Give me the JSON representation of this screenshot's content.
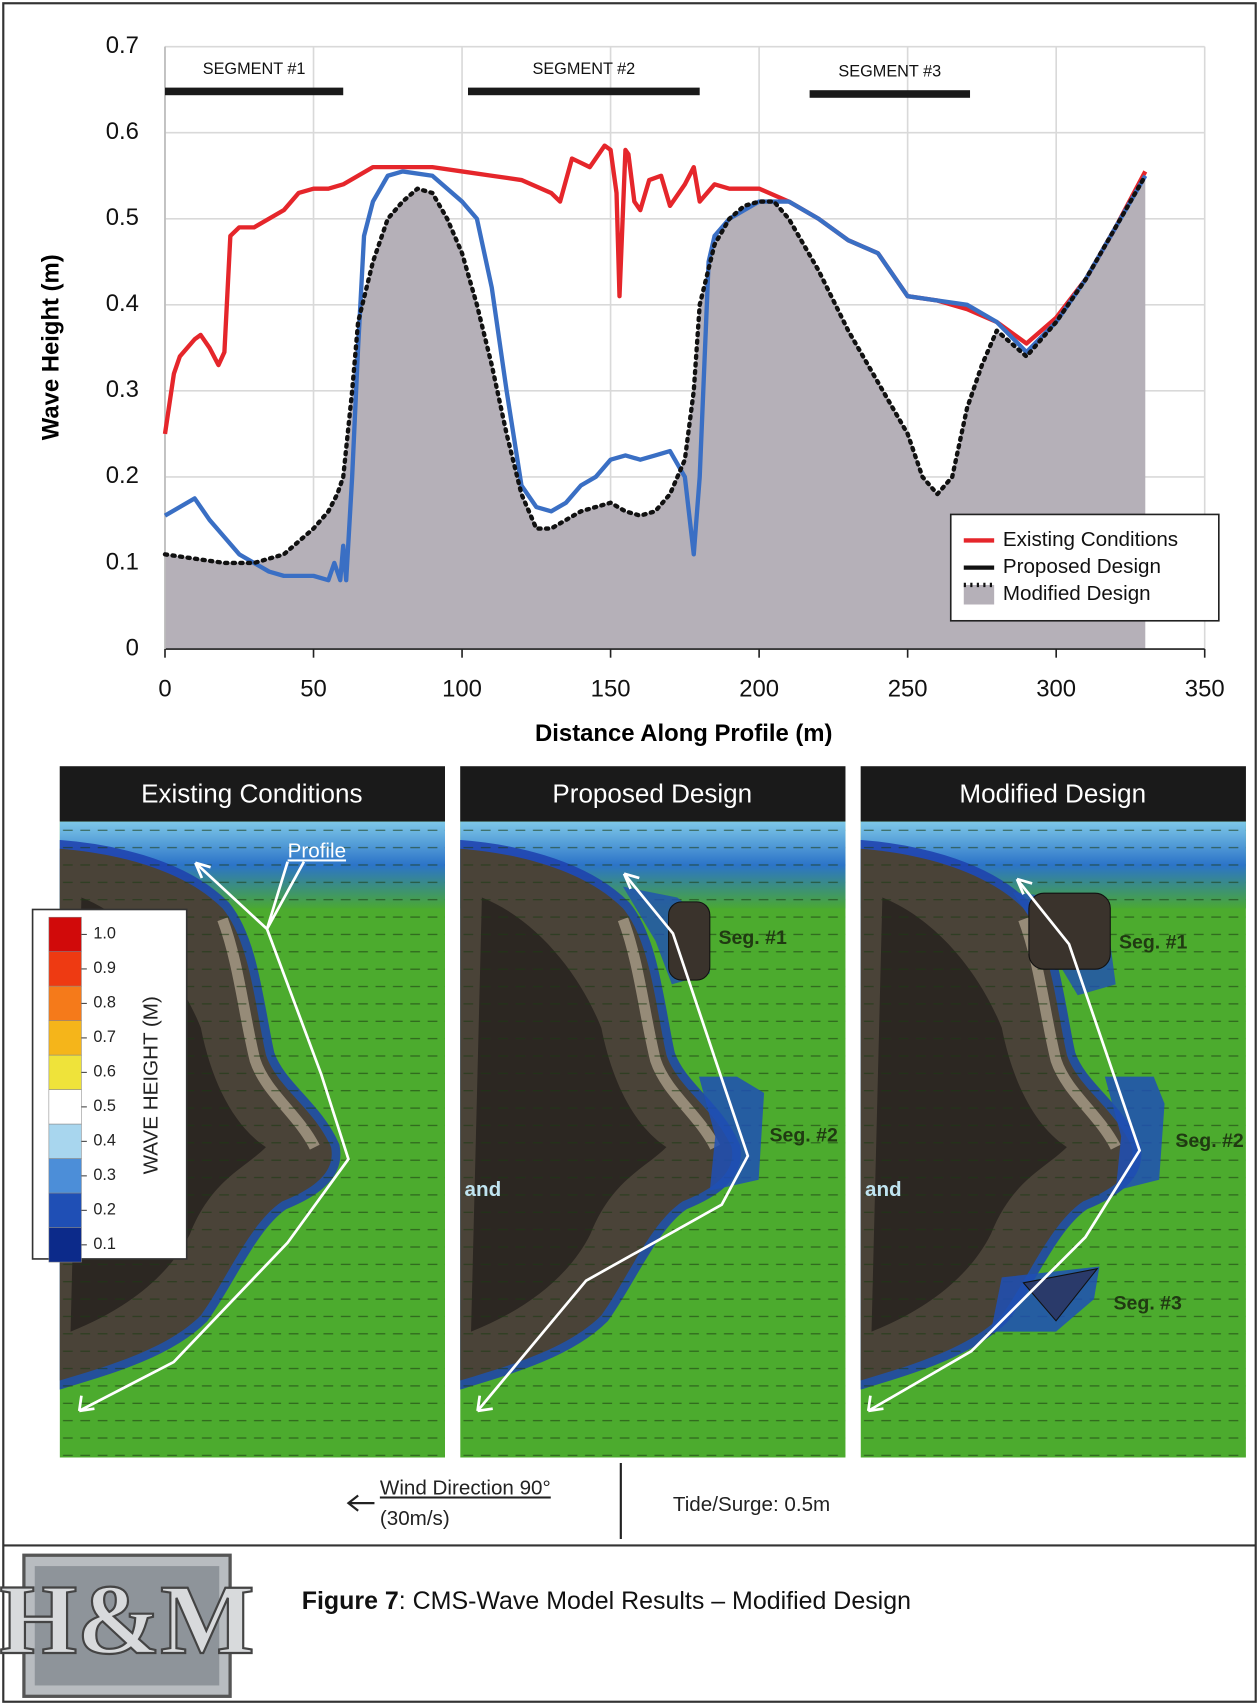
{
  "chart_data": {
    "type": "line",
    "xlabel": "Distance Along Profile (m)",
    "ylabel": "Wave Height (m)",
    "xlim": [
      0,
      350
    ],
    "ylim": [
      0,
      0.7
    ],
    "xticks": [
      0,
      50,
      100,
      150,
      200,
      250,
      300,
      350
    ],
    "yticks": [
      0,
      0.1,
      0.2,
      0.3,
      0.4,
      0.5,
      0.6,
      0.7
    ],
    "grid": true,
    "legend": "lower right",
    "annotations": [
      {
        "label": "SEGMENT #1",
        "x": [
          0,
          60
        ],
        "y": 0.648
      },
      {
        "label": "SEGMENT #2",
        "x": [
          102,
          180
        ],
        "y": 0.648
      },
      {
        "label": "SEGMENT #3",
        "x": [
          217,
          271
        ],
        "y": 0.645
      }
    ],
    "series": [
      {
        "name": "Existing Conditions",
        "color": "#e5262b",
        "style": "solid",
        "x": [
          0,
          3,
          5,
          10,
          12,
          15,
          18,
          20,
          22,
          25,
          30,
          35,
          40,
          45,
          50,
          55,
          60,
          65,
          70,
          80,
          90,
          100,
          110,
          120,
          130,
          133,
          137,
          140,
          143,
          148,
          150,
          152,
          153,
          155,
          156,
          158,
          160,
          163,
          167,
          170,
          175,
          178,
          180,
          185,
          190,
          200,
          210,
          220,
          230,
          240,
          250,
          260,
          270,
          280,
          290,
          300,
          310,
          320,
          330
        ],
        "values": [
          0.25,
          0.32,
          0.34,
          0.36,
          0.365,
          0.35,
          0.33,
          0.345,
          0.48,
          0.49,
          0.49,
          0.5,
          0.51,
          0.53,
          0.535,
          0.535,
          0.54,
          0.55,
          0.56,
          0.56,
          0.56,
          0.555,
          0.55,
          0.545,
          0.53,
          0.52,
          0.57,
          0.565,
          0.56,
          0.585,
          0.58,
          0.53,
          0.41,
          0.58,
          0.575,
          0.52,
          0.51,
          0.545,
          0.55,
          0.515,
          0.54,
          0.56,
          0.52,
          0.54,
          0.535,
          0.535,
          0.52,
          0.5,
          0.475,
          0.46,
          0.41,
          0.405,
          0.395,
          0.38,
          0.355,
          0.385,
          0.43,
          0.49,
          0.555
        ]
      },
      {
        "name": "Proposed Design",
        "color": "#3a6fc4",
        "legend_color": "#111111",
        "style": "solid",
        "x": [
          0,
          5,
          10,
          15,
          20,
          25,
          30,
          35,
          40,
          50,
          55,
          57,
          59,
          60,
          61,
          63,
          65,
          67,
          70,
          75,
          80,
          90,
          100,
          105,
          110,
          115,
          120,
          125,
          130,
          135,
          140,
          145,
          150,
          155,
          160,
          165,
          170,
          175,
          178,
          180,
          183,
          185,
          190,
          200,
          210,
          220,
          230,
          240,
          250,
          260,
          270,
          280,
          290,
          300,
          310,
          320,
          330
        ],
        "values": [
          0.155,
          0.165,
          0.175,
          0.15,
          0.13,
          0.11,
          0.1,
          0.09,
          0.085,
          0.085,
          0.08,
          0.1,
          0.08,
          0.12,
          0.08,
          0.2,
          0.35,
          0.48,
          0.52,
          0.55,
          0.555,
          0.55,
          0.52,
          0.5,
          0.42,
          0.3,
          0.19,
          0.165,
          0.16,
          0.17,
          0.19,
          0.2,
          0.22,
          0.225,
          0.22,
          0.225,
          0.23,
          0.2,
          0.11,
          0.2,
          0.45,
          0.48,
          0.5,
          0.52,
          0.52,
          0.5,
          0.475,
          0.46,
          0.41,
          0.405,
          0.4,
          0.38,
          0.345,
          0.38,
          0.43,
          0.49,
          0.55
        ]
      },
      {
        "name": "Modified Design",
        "color": "#111111",
        "style": "dotted",
        "fill": "#b5b0b8",
        "x": [
          0,
          10,
          20,
          30,
          40,
          50,
          55,
          58,
          60,
          63,
          65,
          70,
          75,
          80,
          85,
          90,
          95,
          100,
          105,
          110,
          115,
          120,
          125,
          130,
          140,
          150,
          155,
          160,
          165,
          170,
          175,
          178,
          180,
          185,
          190,
          195,
          200,
          205,
          210,
          220,
          230,
          240,
          250,
          255,
          260,
          265,
          270,
          275,
          280,
          290,
          300,
          310,
          320,
          330
        ],
        "values": [
          0.11,
          0.105,
          0.1,
          0.1,
          0.11,
          0.14,
          0.16,
          0.18,
          0.2,
          0.3,
          0.38,
          0.45,
          0.5,
          0.52,
          0.535,
          0.53,
          0.5,
          0.46,
          0.4,
          0.33,
          0.25,
          0.18,
          0.14,
          0.14,
          0.16,
          0.17,
          0.16,
          0.155,
          0.16,
          0.18,
          0.22,
          0.3,
          0.4,
          0.47,
          0.5,
          0.515,
          0.52,
          0.52,
          0.5,
          0.44,
          0.37,
          0.31,
          0.25,
          0.2,
          0.18,
          0.2,
          0.28,
          0.33,
          0.37,
          0.34,
          0.38,
          0.43,
          0.49,
          0.55
        ]
      }
    ]
  },
  "panels": [
    {
      "title": "Existing Conditions",
      "labels": [
        "Profile"
      ]
    },
    {
      "title": "Proposed Design",
      "labels": [
        "Seg. #1",
        "Seg. #2",
        "and"
      ]
    },
    {
      "title": "Modified Design",
      "labels": [
        "Seg. #1",
        "Seg. #2",
        "Seg. #3",
        "and"
      ]
    }
  ],
  "colorbar": {
    "title": "WAVE HEIGHT (M)",
    "ticks": [
      {
        "value": 1,
        "label": "1.0"
      },
      0.9,
      0.8,
      0.7,
      0.6,
      0.5,
      0.4,
      0.3,
      0.2,
      0.1
    ],
    "colors": [
      "#d10a0a",
      "#ee3a12",
      "#f57a1a",
      "#f5b51a",
      "#efe33a",
      "#ffffff",
      "#a8d6ee",
      "#4c8ed8",
      "#1f4fb5",
      "#0c2a8a"
    ]
  },
  "notes": {
    "wind": "Wind Direction 90°",
    "wind_speed": "(30m/s)",
    "tide": "Tide/Surge: 0.5m"
  },
  "caption": {
    "label": "Figure 7",
    "text": ": CMS-Wave Model Results – Modified Design"
  },
  "logo": "H&M"
}
